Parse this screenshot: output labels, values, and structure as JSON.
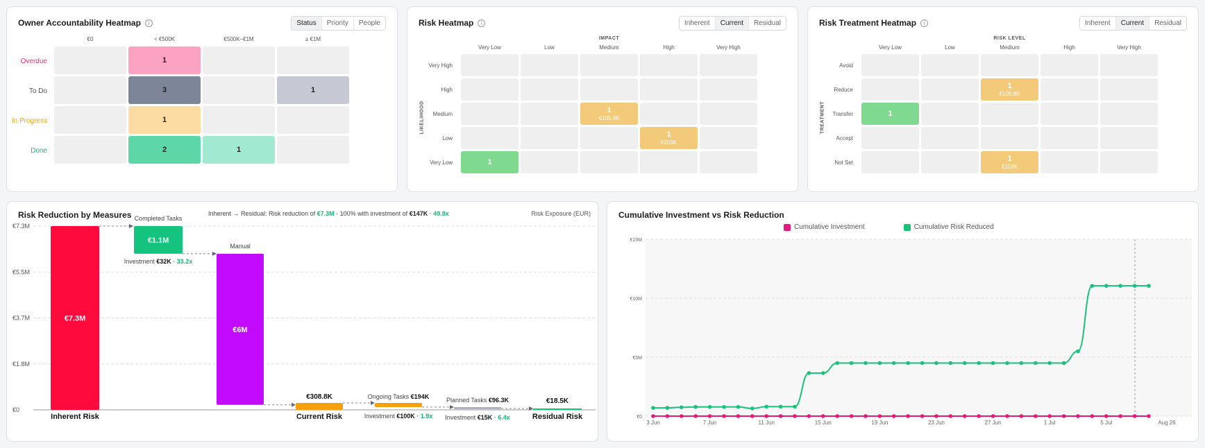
{
  "owner_heatmap": {
    "title": "Owner Accountability Heatmap",
    "tabs": [
      "Status",
      "Priority",
      "People"
    ],
    "active_tab": "Status",
    "columns": [
      "€0",
      "< €500K",
      "€500K–€1M",
      "≥ €1M"
    ],
    "rows": [
      {
        "label": "Overdue",
        "color": "#e0336e",
        "values": [
          "",
          "1",
          "",
          ""
        ]
      },
      {
        "label": "To Do",
        "color": "#555555",
        "values": [
          "",
          "3",
          "",
          "1"
        ]
      },
      {
        "label": "In Progress",
        "color": "#e8a21a",
        "values": [
          "",
          "1",
          "",
          ""
        ]
      },
      {
        "label": "Done",
        "color": "#21b07c",
        "values": [
          "",
          "2",
          "1",
          ""
        ]
      }
    ]
  },
  "risk_heatmap": {
    "title": "Risk Heatmap",
    "tabs": [
      "Inherent",
      "Current",
      "Residual"
    ],
    "active_tab": "Current",
    "x_title": "IMPACT",
    "y_title": "LIKELIHOOD",
    "columns": [
      "Very Low",
      "Low",
      "Medium",
      "High",
      "Very High"
    ],
    "rows": [
      "Very High",
      "High",
      "Medium",
      "Low",
      "Very Low"
    ],
    "cells": [
      {
        "row": 2,
        "col": 2,
        "count": "1",
        "value": "€105.8K",
        "color": "#f3c97a"
      },
      {
        "row": 3,
        "col": 3,
        "count": "1",
        "value": "€203K",
        "color": "#f3c97a"
      },
      {
        "row": 4,
        "col": 0,
        "count": "1",
        "value": "",
        "color": "#7fd98f"
      }
    ]
  },
  "treatment_heatmap": {
    "title": "Risk Treatment Heatmap",
    "tabs": [
      "Inherent",
      "Current",
      "Residual"
    ],
    "active_tab": "Current",
    "x_title": "RISK LEVEL",
    "y_title": "TREATMENT",
    "columns": [
      "Very Low",
      "Low",
      "Medium",
      "High",
      "Very High"
    ],
    "rows": [
      "Avoid",
      "Reduce",
      "Transfer",
      "Accept",
      "Not Set"
    ],
    "cells": [
      {
        "row": 1,
        "col": 2,
        "count": "1",
        "value": "€105.8K",
        "color": "#f3c97a"
      },
      {
        "row": 2,
        "col": 0,
        "count": "1",
        "value": "",
        "color": "#7fd98f"
      },
      {
        "row": 4,
        "col": 2,
        "count": "1",
        "value": "€203K",
        "color": "#f3c97a"
      }
    ]
  },
  "waterfall": {
    "title": "Risk Reduction by Measures",
    "summary_prefix": "Inherent → Residual: Risk reduction of",
    "summary_reduction": "€7.3M",
    "summary_mid": "· 100% with investment of",
    "summary_investment": "€147K",
    "summary_ratio": "· 49.8x",
    "unit_label": "Risk Exposure (EUR)",
    "y_ticks": [
      "€7.3M",
      "€5.5M",
      "€3.7M",
      "€1.8M",
      "€0"
    ],
    "inherent_label": "Inherent Risk",
    "inherent_value": "€7.3M",
    "completed_label": "Completed Tasks",
    "completed_value": "€1.1M",
    "completed_inv_label": "Investment",
    "completed_inv_value": "€32K",
    "completed_ratio": "· 33.2x",
    "manual_label": "Manual",
    "manual_value": "€6M",
    "current_label": "Current Risk",
    "current_value": "€308.8K",
    "ongoing_label": "Ongoing Tasks",
    "ongoing_value": "€194K",
    "ongoing_inv_label": "Investment",
    "ongoing_inv_value": "€100K",
    "ongoing_ratio": "· 1.9x",
    "planned_label": "Planned Tasks",
    "planned_value": "€96.3K",
    "planned_inv_label": "Investment",
    "planned_inv_value": "€15K",
    "planned_ratio": "· 6.4x",
    "residual_label": "Residual Risk",
    "residual_value": "€18.5K",
    "colors": {
      "inherent": "#ff0a3c",
      "completed": "#14c47e",
      "manual": "#c20aff",
      "current": "#f5a00c",
      "ongoing": "#f5a00c",
      "planned": "#a9b4c9",
      "residual": "#14c47e"
    }
  },
  "cumulative": {
    "title": "Cumulative Investment vs Risk Reduction",
    "legend": [
      {
        "name": "Cumulative Investment",
        "color": "#e6197a"
      },
      {
        "name": "Cumulative Risk Reduced",
        "color": "#19c27a"
      }
    ],
    "y_ticks": [
      "€15M",
      "€10M",
      "€5M",
      "€0"
    ],
    "x_ticks": [
      "3 Jun",
      "7 Jun",
      "11 Jun",
      "15 Jun",
      "19 Jun",
      "23 Jun",
      "27 Jun",
      "1 Jul",
      "5 Jul",
      "Aug 26"
    ]
  },
  "chart_data": [
    {
      "type": "bar",
      "title": "Risk Reduction by Measures",
      "ylabel": "Risk Exposure (EUR)",
      "categories": [
        "Inherent Risk",
        "Completed Tasks",
        "Manual",
        "Current Risk",
        "Ongoing Tasks",
        "Planned Tasks",
        "Residual Risk"
      ],
      "values": [
        7300000,
        1100000,
        6000000,
        308800,
        194000,
        96300,
        18500
      ],
      "ylim": [
        0,
        7300000
      ]
    },
    {
      "type": "line",
      "title": "Cumulative Investment vs Risk Reduction",
      "x": [
        "2025-06-03",
        "2025-06-04",
        "2025-06-05",
        "2025-06-06",
        "2025-06-07",
        "2025-06-08",
        "2025-06-09",
        "2025-06-10",
        "2025-06-11",
        "2025-06-12",
        "2025-06-13",
        "2025-06-14",
        "2025-06-15",
        "2025-06-16",
        "2025-06-17",
        "2025-06-18",
        "2025-06-19",
        "2025-06-20",
        "2025-06-21",
        "2025-06-22",
        "2025-06-23",
        "2025-06-24",
        "2025-06-25",
        "2025-06-26",
        "2025-06-27",
        "2025-06-28",
        "2025-06-29",
        "2025-06-30",
        "2025-07-01",
        "2025-07-02",
        "2025-07-03",
        "2025-07-04",
        "2025-07-05",
        "2025-07-06",
        "2025-07-07",
        "2025-07-08"
      ],
      "series": [
        {
          "name": "Cumulative Investment",
          "values": [
            0,
            0,
            0,
            0,
            0,
            0,
            0,
            0,
            0,
            0,
            0,
            0,
            0,
            0,
            0,
            0,
            0,
            0,
            0,
            0,
            0,
            0,
            0,
            0,
            0,
            0,
            0,
            0,
            0,
            0,
            0,
            0,
            0,
            0,
            0,
            0
          ]
        },
        {
          "name": "Cumulative Risk Reduced",
          "values": [
            700000,
            700000,
            750000,
            780000,
            780000,
            780000,
            780000,
            650000,
            800000,
            800000,
            800000,
            3650000,
            3650000,
            4500000,
            4500000,
            4500000,
            4500000,
            4500000,
            4500000,
            4500000,
            4500000,
            4500000,
            4500000,
            4500000,
            4500000,
            4500000,
            4500000,
            4500000,
            4500000,
            4500000,
            5500000,
            11050000,
            11050000,
            11050000,
            11050000,
            11050000
          ]
        }
      ],
      "ylim": [
        0,
        15000000
      ],
      "grid": true,
      "legend": "top"
    }
  ]
}
